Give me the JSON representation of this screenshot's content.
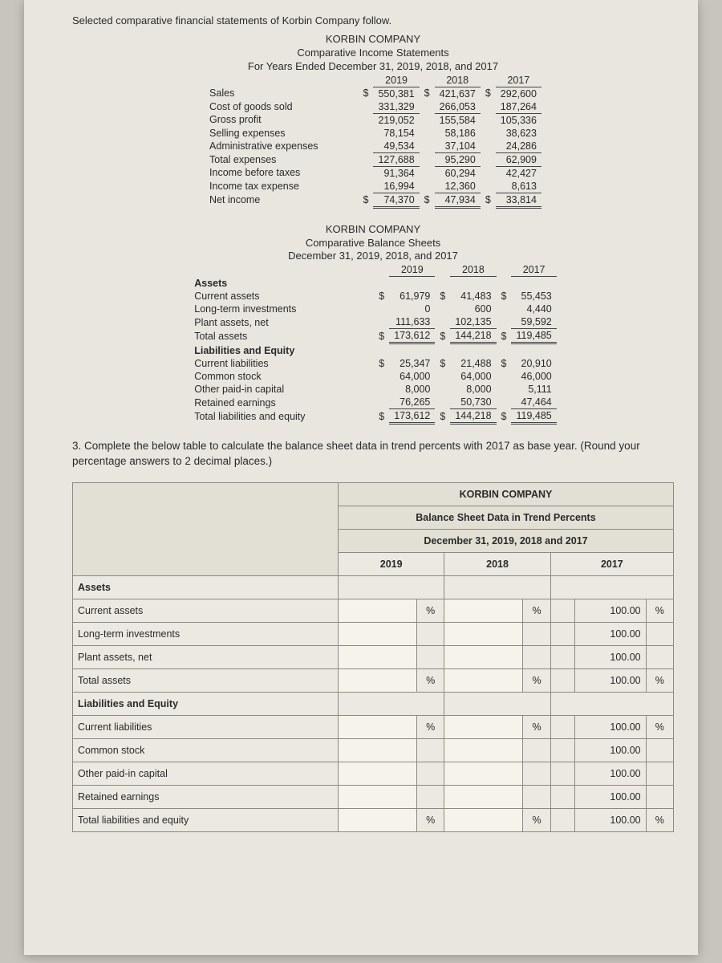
{
  "intro": "Selected comparative financial statements of Korbin Company follow.",
  "company": "KORBIN COMPANY",
  "income": {
    "title1": "Comparative Income Statements",
    "title2": "For Years Ended December 31, 2019, 2018, and 2017",
    "years": [
      "2019",
      "2018",
      "2017"
    ],
    "rows": [
      {
        "label": "Sales",
        "d": true,
        "v": [
          "550,381",
          "421,637",
          "292,600"
        ]
      },
      {
        "label": "Cost of goods sold",
        "under": true,
        "v": [
          "331,329",
          "266,053",
          "187,264"
        ]
      },
      {
        "label": "Gross profit",
        "v": [
          "219,052",
          "155,584",
          "105,336"
        ]
      },
      {
        "label": "Selling expenses",
        "v": [
          "78,154",
          "58,186",
          "38,623"
        ]
      },
      {
        "label": "Administrative expenses",
        "under": true,
        "v": [
          "49,534",
          "37,104",
          "24,286"
        ]
      },
      {
        "label": "Total expenses",
        "under": true,
        "v": [
          "127,688",
          "95,290",
          "62,909"
        ]
      },
      {
        "label": "Income before taxes",
        "v": [
          "91,364",
          "60,294",
          "42,427"
        ]
      },
      {
        "label": "Income tax expense",
        "under": true,
        "v": [
          "16,994",
          "12,360",
          "8,613"
        ]
      },
      {
        "label": "Net income",
        "d": true,
        "dbl": true,
        "v": [
          "74,370",
          "47,934",
          "33,814"
        ]
      }
    ]
  },
  "balance": {
    "title1": "Comparative Balance Sheets",
    "title2": "December 31, 2019, 2018, and 2017",
    "years": [
      "2019",
      "2018",
      "2017"
    ],
    "section1": "Assets",
    "rows1": [
      {
        "label": "Current assets",
        "d": true,
        "v": [
          "61,979",
          "41,483",
          "55,453"
        ]
      },
      {
        "label": "Long-term investments",
        "v": [
          "0",
          "600",
          "4,440"
        ]
      },
      {
        "label": "Plant assets, net",
        "under": true,
        "v": [
          "111,633",
          "102,135",
          "59,592"
        ]
      },
      {
        "label": "Total assets",
        "d": true,
        "dbl": true,
        "v": [
          "173,612",
          "144,218",
          "119,485"
        ]
      }
    ],
    "section2": "Liabilities and Equity",
    "rows2": [
      {
        "label": "Current liabilities",
        "d": true,
        "v": [
          "25,347",
          "21,488",
          "20,910"
        ]
      },
      {
        "label": "Common stock",
        "v": [
          "64,000",
          "64,000",
          "46,000"
        ]
      },
      {
        "label": "Other paid-in capital",
        "v": [
          "8,000",
          "8,000",
          "5,111"
        ]
      },
      {
        "label": "Retained earnings",
        "under": true,
        "v": [
          "76,265",
          "50,730",
          "47,464"
        ]
      },
      {
        "label": "Total liabilities and equity",
        "d": true,
        "dbl": true,
        "v": [
          "173,612",
          "144,218",
          "119,485"
        ]
      }
    ]
  },
  "question": "3. Complete the below table to calculate the balance sheet data in trend percents with 2017 as base year. (Round your percentage answers to 2 decimal places.)",
  "answer": {
    "title1": "KORBIN COMPANY",
    "title2": "Balance Sheet Data in Trend Percents",
    "title3": "December 31, 2019, 2018 and 2017",
    "years": [
      "2019",
      "2018",
      "2017"
    ],
    "section1": "Assets",
    "rows": [
      {
        "label": "Current assets",
        "p19": "%",
        "p18": "%",
        "v17": "100.00",
        "p17": "%"
      },
      {
        "label": "Long-term investments",
        "v17": "100.00"
      },
      {
        "label": "Plant assets, net",
        "v17": "100.00"
      },
      {
        "label": "Total assets",
        "p19": "%",
        "p18": "%",
        "v17": "100.00",
        "p17": "%"
      }
    ],
    "section2": "Liabilities and Equity",
    "rows2": [
      {
        "label": "Current liabilities",
        "p19": "%",
        "p18": "%",
        "v17": "100.00",
        "p17": "%"
      },
      {
        "label": "Common stock",
        "v17": "100.00"
      },
      {
        "label": "Other paid-in capital",
        "v17": "100.00"
      },
      {
        "label": "Retained earnings",
        "v17": "100.00"
      },
      {
        "label": "Total liabilities and equity",
        "p19": "%",
        "p18": "%",
        "v17": "100.00",
        "p17": "%"
      }
    ]
  }
}
